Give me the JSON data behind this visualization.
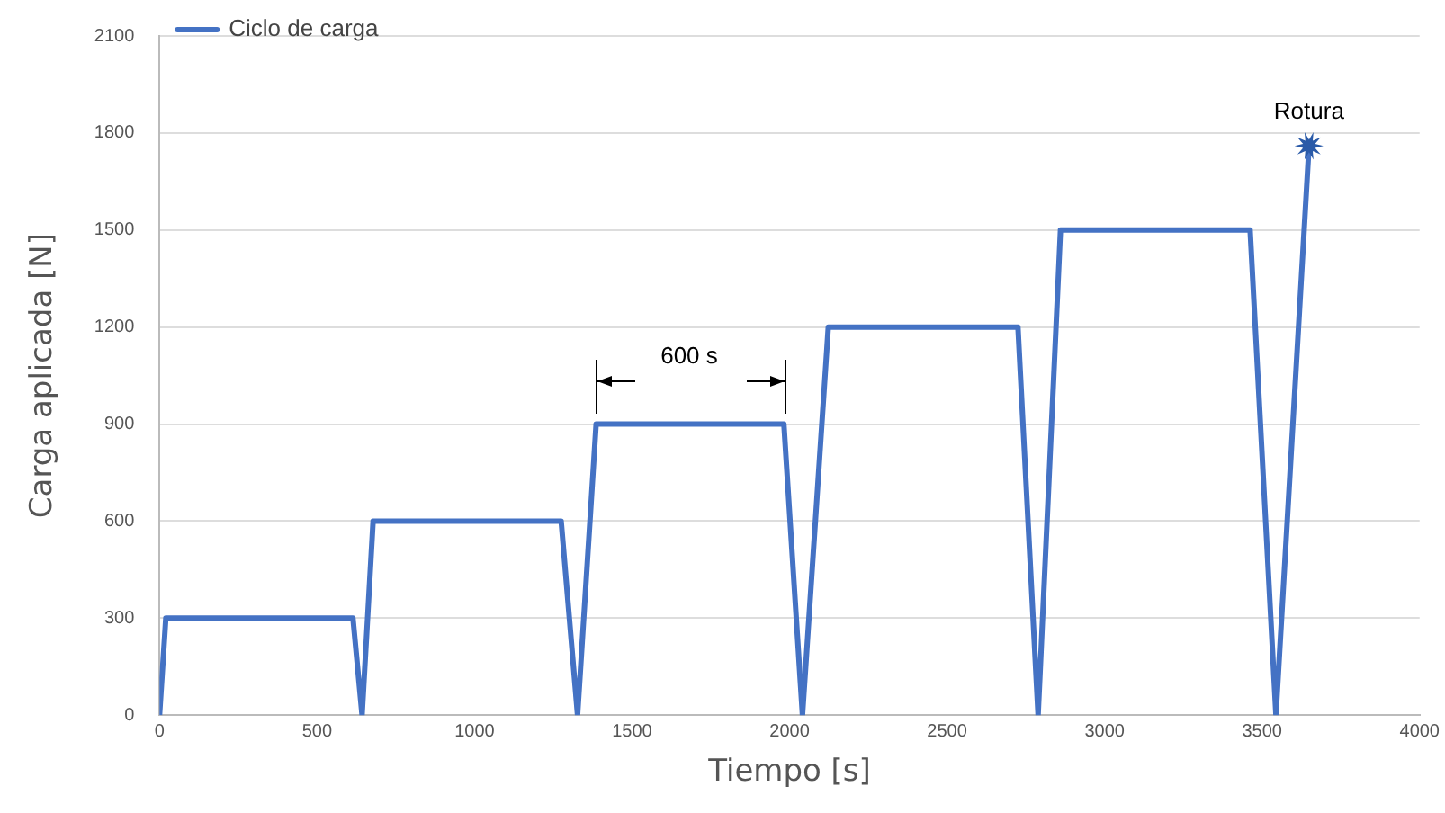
{
  "chart_data": {
    "type": "line",
    "xlabel": "Tiempo [s]",
    "ylabel": "Carga aplicada [N]",
    "x": [
      0,
      20,
      614,
      643,
      678,
      1275,
      1327,
      1386,
      1982,
      2041,
      2123,
      2725,
      2789,
      2860,
      3462,
      3544,
      3649
    ],
    "series": [
      {
        "name": "Ciclo de carga",
        "color": "#4472c4",
        "values": [
          0,
          300,
          300,
          0,
          600,
          600,
          0,
          900,
          900,
          0,
          1200,
          1200,
          0,
          1500,
          1500,
          0,
          1760
        ]
      }
    ],
    "xlim": [
      0,
      4000
    ],
    "xticks": [
      0,
      500,
      1000,
      1500,
      2000,
      2500,
      3000,
      3500,
      4000
    ],
    "ylim": [
      0,
      2100
    ],
    "yticks": [
      0,
      300,
      600,
      900,
      1200,
      1500,
      1800,
      2100
    ],
    "grid": "y",
    "legend": "top left",
    "marker": "none",
    "line_style": "solid",
    "annotations": [
      "600 s",
      {
        "text": "Rotura",
        "x": 3649,
        "y": 1760
      }
    ]
  }
}
